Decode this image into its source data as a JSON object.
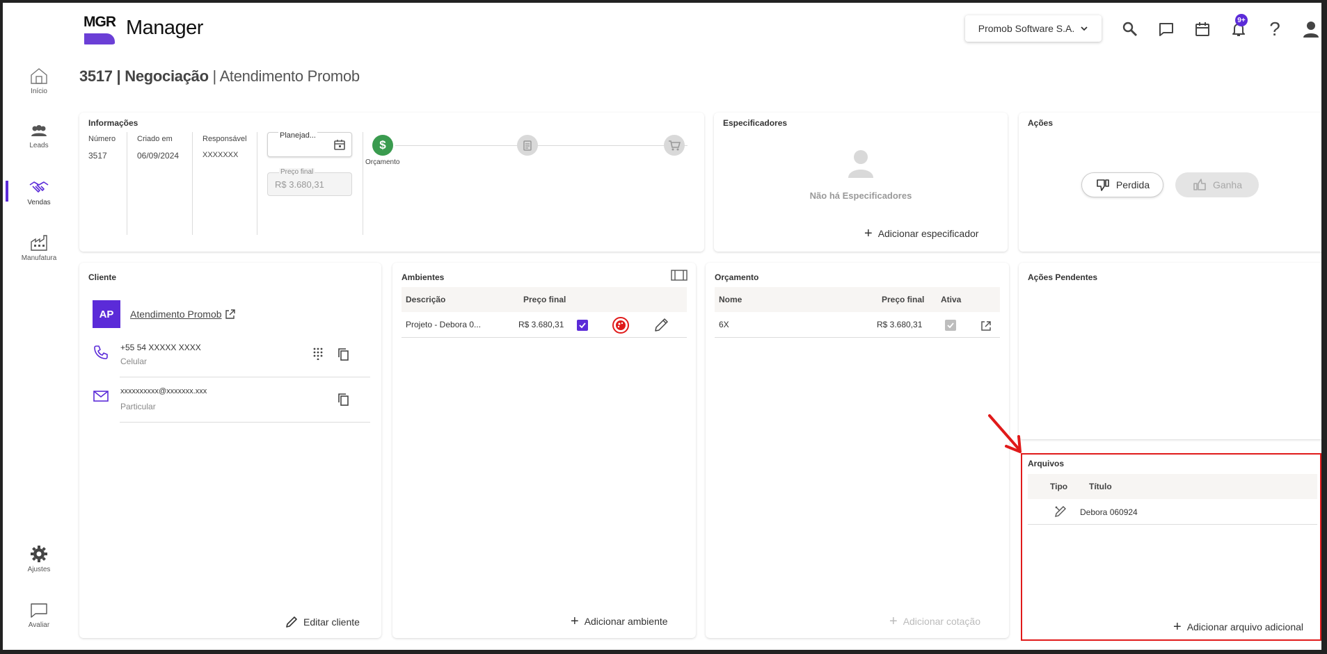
{
  "app": {
    "logo_text": "MGR",
    "name": "Manager",
    "company": "Promob Software S.A.",
    "notification_count": "9+"
  },
  "nav": {
    "home": "Início",
    "leads": "Leads",
    "sales": "Vendas",
    "manufacturing": "Manufatura",
    "settings": "Ajustes",
    "rate": "Avaliar"
  },
  "page": {
    "id": "3517",
    "separator1": " | ",
    "stage": "Negociação",
    "separator2": " | ",
    "client_name": "Atendimento Promob"
  },
  "info": {
    "title": "Informações",
    "number_label": "Número",
    "number_value": "3517",
    "created_label": "Criado em",
    "created_value": "06/09/2024",
    "owner_label": "Responsável",
    "owner_value": "XXXXXXX",
    "planned_label": "Planejad...",
    "final_price_label": "Preço final",
    "final_price_value": "R$ 3.680,31",
    "step1_label": "Orçamento"
  },
  "specifiers": {
    "title": "Especificadores",
    "empty_text": "Não há Especificadores",
    "add_label": "Adicionar especificador"
  },
  "actions": {
    "title": "Ações",
    "lost_label": "Perdida",
    "won_label": "Ganha"
  },
  "client": {
    "title": "Cliente",
    "avatar_initials": "AP",
    "name": "Atendimento Promob",
    "phone": "+55 54 XXXXX XXXX",
    "phone_type": "Celular",
    "email": "xxxxxxxxxx@xxxxxxx.xxx",
    "email_type": "Particular",
    "edit_label": "Editar cliente"
  },
  "environments": {
    "title": "Ambientes",
    "col_description": "Descrição",
    "col_final_price": "Preço final",
    "rows": [
      {
        "description": "Projeto - Debora 0...",
        "price": "R$ 3.680,31"
      }
    ],
    "add_label": "Adicionar ambiente"
  },
  "budget": {
    "title": "Orçamento",
    "col_name": "Nome",
    "col_final_price": "Preço final",
    "col_active": "Ativa",
    "rows": [
      {
        "name": "6X",
        "price": "R$ 3.680,31"
      }
    ],
    "add_label": "Adicionar cotação"
  },
  "pending": {
    "title": "Ações Pendentes"
  },
  "files": {
    "title": "Arquivos",
    "col_type": "Tipo",
    "col_title": "Título",
    "rows": [
      {
        "title": "Debora 060924"
      }
    ],
    "add_label": "Adicionar arquivo adicional"
  },
  "colors": {
    "accent": "#5b2bd8",
    "success": "#3a9b4f",
    "annotation": "#e01a1a"
  }
}
